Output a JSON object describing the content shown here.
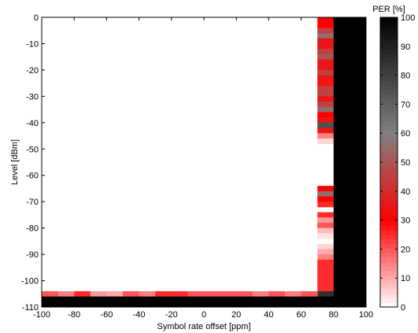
{
  "chart_data": {
    "type": "heatmap",
    "title": "",
    "xlabel": "Symbol rate offset [ppm]",
    "ylabel": "Level [dBm]",
    "xlim": [
      -100,
      100
    ],
    "ylim": [
      -110,
      0
    ],
    "xticks": [
      -100,
      -80,
      -60,
      -40,
      -20,
      0,
      20,
      40,
      60,
      80,
      100
    ],
    "yticks": [
      0,
      -10,
      -20,
      -30,
      -40,
      -50,
      -60,
      -70,
      -80,
      -90,
      -100,
      -110
    ],
    "x_bin_width": 10,
    "y_bin_height": 2,
    "colorbar": {
      "title": "PER [%]",
      "range": [
        0,
        100
      ],
      "ticks": [
        0,
        10,
        20,
        30,
        40,
        50,
        60,
        70,
        80,
        90,
        100
      ],
      "colormap": "white-red-gray-black"
    },
    "default_per": 0,
    "cells": [
      {
        "x": 75,
        "y": [
          0,
          -4
        ],
        "per": 30
      },
      {
        "x": 75,
        "y": [
          -4,
          -6
        ],
        "per": 45
      },
      {
        "x": 75,
        "y": [
          -6,
          -8
        ],
        "per": 55
      },
      {
        "x": 75,
        "y": [
          -8,
          -12
        ],
        "per": 35
      },
      {
        "x": 75,
        "y": [
          -12,
          -14
        ],
        "per": 45
      },
      {
        "x": 75,
        "y": [
          -14,
          -16
        ],
        "per": 50
      },
      {
        "x": 75,
        "y": [
          -16,
          -20
        ],
        "per": 35
      },
      {
        "x": 75,
        "y": [
          -20,
          -22
        ],
        "per": 45
      },
      {
        "x": 75,
        "y": [
          -22,
          -24
        ],
        "per": 35
      },
      {
        "x": 75,
        "y": [
          -24,
          -26
        ],
        "per": 28
      },
      {
        "x": 75,
        "y": [
          -26,
          -30
        ],
        "per": 45
      },
      {
        "x": 75,
        "y": [
          -30,
          -32
        ],
        "per": 35
      },
      {
        "x": 75,
        "y": [
          -32,
          -34
        ],
        "per": 45
      },
      {
        "x": 75,
        "y": [
          -34,
          -36
        ],
        "per": 55
      },
      {
        "x": 75,
        "y": [
          -36,
          -38
        ],
        "per": 30
      },
      {
        "x": 75,
        "y": [
          -38,
          -40
        ],
        "per": 35
      },
      {
        "x": 75,
        "y": [
          -40,
          -42
        ],
        "per": 75
      },
      {
        "x": 75,
        "y": [
          -42,
          -44
        ],
        "per": 35
      },
      {
        "x": 75,
        "y": [
          -44,
          -46
        ],
        "per": 15
      },
      {
        "x": 75,
        "y": [
          -46,
          -48
        ],
        "per": 5
      },
      {
        "x": 75,
        "y": [
          -64,
          -66
        ],
        "per": 30
      },
      {
        "x": 75,
        "y": [
          -66,
          -68
        ],
        "per": 55
      },
      {
        "x": 75,
        "y": [
          -68,
          -70
        ],
        "per": 30
      },
      {
        "x": 75,
        "y": [
          -70,
          -72
        ],
        "per": 25
      },
      {
        "x": 75,
        "y": [
          -74,
          -76
        ],
        "per": 25
      },
      {
        "x": 75,
        "y": [
          -76,
          -78
        ],
        "per": 12
      },
      {
        "x": 75,
        "y": [
          -78,
          -80
        ],
        "per": 20
      },
      {
        "x": 75,
        "y": [
          -80,
          -82
        ],
        "per": 8
      },
      {
        "x": 75,
        "y": [
          -82,
          -84
        ],
        "per": 3
      },
      {
        "x": 75,
        "y": [
          -86,
          -88
        ],
        "per": 5
      },
      {
        "x": 75,
        "y": [
          -88,
          -90
        ],
        "per": 10
      },
      {
        "x": 75,
        "y": [
          -90,
          -92
        ],
        "per": 15
      },
      {
        "x": 75,
        "y": [
          -92,
          -104
        ],
        "per": 25
      },
      {
        "x": 75,
        "y": [
          -104,
          -106
        ],
        "per": 85
      },
      {
        "x": 75,
        "y": [
          -106,
          -110
        ],
        "per": 100
      },
      {
        "x": 85,
        "y": [
          0,
          -110
        ],
        "per": 100
      },
      {
        "x": 95,
        "y": [
          0,
          -110
        ],
        "per": 100
      },
      {
        "x": -95,
        "y": [
          -104,
          -106
        ],
        "per": 20
      },
      {
        "x": -85,
        "y": [
          -104,
          -106
        ],
        "per": 15
      },
      {
        "x": -75,
        "y": [
          -104,
          -106
        ],
        "per": 25
      },
      {
        "x": -65,
        "y": [
          -104,
          -106
        ],
        "per": 12
      },
      {
        "x": -55,
        "y": [
          -104,
          -106
        ],
        "per": 10
      },
      {
        "x": -45,
        "y": [
          -104,
          -106
        ],
        "per": 20
      },
      {
        "x": -35,
        "y": [
          -104,
          -106
        ],
        "per": 15
      },
      {
        "x": -25,
        "y": [
          -104,
          -106
        ],
        "per": 25
      },
      {
        "x": -15,
        "y": [
          -104,
          -106
        ],
        "per": 25
      },
      {
        "x": -5,
        "y": [
          -104,
          -106
        ],
        "per": 20
      },
      {
        "x": 5,
        "y": [
          -104,
          -106
        ],
        "per": 20
      },
      {
        "x": 15,
        "y": [
          -104,
          -106
        ],
        "per": 20
      },
      {
        "x": 25,
        "y": [
          -104,
          -106
        ],
        "per": 20
      },
      {
        "x": 35,
        "y": [
          -104,
          -106
        ],
        "per": 15
      },
      {
        "x": 45,
        "y": [
          -104,
          -106
        ],
        "per": 20
      },
      {
        "x": 55,
        "y": [
          -104,
          -106
        ],
        "per": 15
      },
      {
        "x": 65,
        "y": [
          -104,
          -106
        ],
        "per": 20
      },
      {
        "x": -95,
        "y": [
          -106,
          -110
        ],
        "per": 100
      },
      {
        "x": -85,
        "y": [
          -106,
          -110
        ],
        "per": 100
      },
      {
        "x": -75,
        "y": [
          -106,
          -110
        ],
        "per": 100
      },
      {
        "x": -65,
        "y": [
          -106,
          -110
        ],
        "per": 100
      },
      {
        "x": -55,
        "y": [
          -106,
          -110
        ],
        "per": 100
      },
      {
        "x": -45,
        "y": [
          -106,
          -110
        ],
        "per": 100
      },
      {
        "x": -35,
        "y": [
          -106,
          -110
        ],
        "per": 100
      },
      {
        "x": -25,
        "y": [
          -106,
          -110
        ],
        "per": 100
      },
      {
        "x": -15,
        "y": [
          -106,
          -110
        ],
        "per": 100
      },
      {
        "x": -5,
        "y": [
          -106,
          -110
        ],
        "per": 100
      },
      {
        "x": 5,
        "y": [
          -106,
          -110
        ],
        "per": 100
      },
      {
        "x": 15,
        "y": [
          -106,
          -110
        ],
        "per": 100
      },
      {
        "x": 25,
        "y": [
          -106,
          -110
        ],
        "per": 100
      },
      {
        "x": 35,
        "y": [
          -106,
          -110
        ],
        "per": 100
      },
      {
        "x": 45,
        "y": [
          -106,
          -110
        ],
        "per": 100
      },
      {
        "x": 55,
        "y": [
          -106,
          -110
        ],
        "per": 100
      },
      {
        "x": 65,
        "y": [
          -106,
          -110
        ],
        "per": 100
      }
    ]
  }
}
